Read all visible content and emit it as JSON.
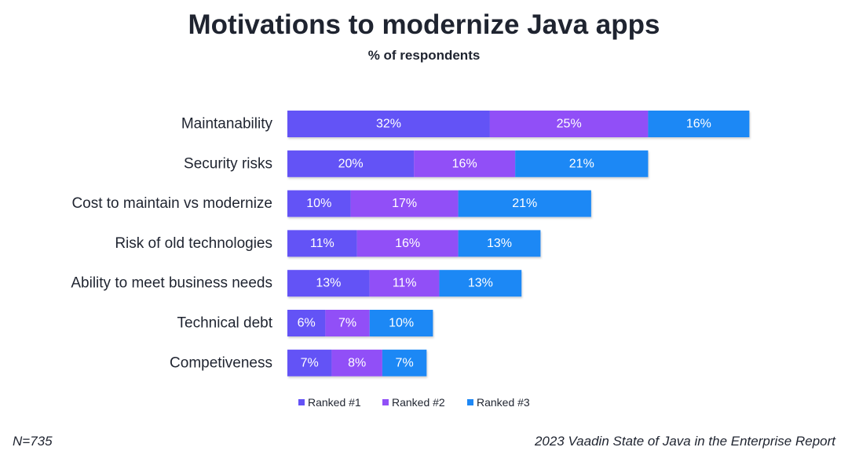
{
  "title": "Motivations to modernize Java apps",
  "subtitle": "% of respondents",
  "footnote_left": "N=735",
  "footnote_right": "2023 Vaadin State of Java in the Enterprise Report",
  "chart_data": {
    "type": "bar",
    "orientation": "horizontal",
    "stacked": true,
    "categories": [
      "Maintanability",
      "Security risks",
      "Cost to maintain vs modernize",
      "Risk of old technologies",
      "Ability to meet business needs",
      "Technical debt",
      "Competiveness"
    ],
    "series": [
      {
        "name": "Ranked #1",
        "color": "#6452f6",
        "values": [
          32,
          20,
          10,
          11,
          13,
          6,
          7
        ],
        "labels": [
          "32%",
          "20%",
          "10%",
          "11%",
          "13%",
          "6%",
          "7%"
        ]
      },
      {
        "name": "Ranked #2",
        "color": "#9150f7",
        "values": [
          25,
          16,
          17,
          16,
          11,
          7,
          8
        ],
        "labels": [
          "25%",
          "16%",
          "17%",
          "16%",
          "11%",
          "7%",
          "8%"
        ]
      },
      {
        "name": "Ranked #3",
        "color": "#1e88f5",
        "values": [
          16,
          21,
          21,
          13,
          13,
          10,
          7
        ],
        "labels": [
          "16%",
          "21%",
          "21%",
          "13%",
          "13%",
          "10%",
          "7%"
        ]
      }
    ],
    "legend_position": "bottom",
    "grid": false,
    "xaxis_visible": false
  }
}
